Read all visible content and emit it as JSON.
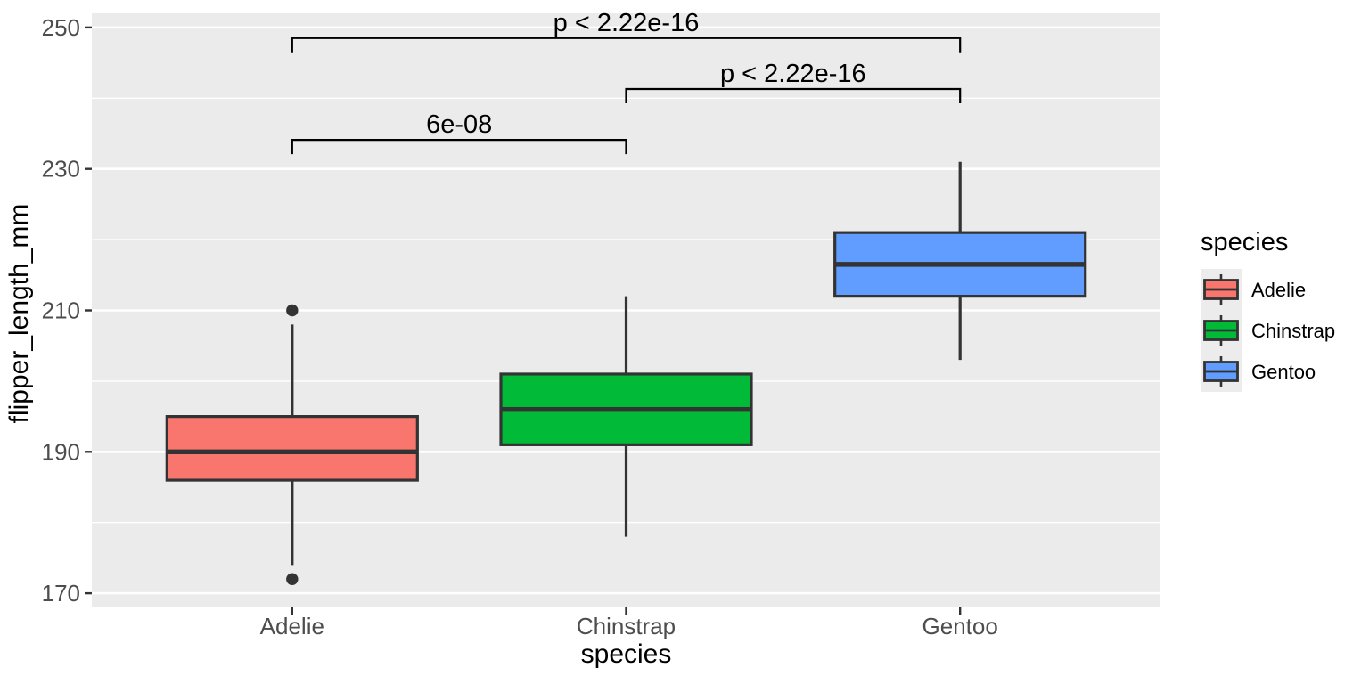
{
  "style": {
    "background": "#FFFFFF",
    "panel_background": "#EBEBEB",
    "grid_color": "#FFFFFF",
    "axis_text_color": "#4D4D4D",
    "title_color": "#000000",
    "box_outline": "#333333",
    "outlier_color": "#333333",
    "legend_key_background": "#ECECEC"
  },
  "chart_data": {
    "type": "boxplot",
    "title": "",
    "xlabel": "species",
    "ylabel": "flipper_length_mm",
    "categories": [
      "Adelie",
      "Chinstrap",
      "Gentoo"
    ],
    "y_ticks": [
      170,
      190,
      210,
      230,
      250
    ],
    "y_minor_ticks": [
      180,
      200,
      220,
      240
    ],
    "ylim": [
      168,
      252
    ],
    "grid": true,
    "legend_position": "right",
    "series": [
      {
        "name": "Adelie",
        "color": "#F8766D",
        "whisker_low": 174,
        "q1": 186,
        "median": 190,
        "q3": 195,
        "whisker_high": 208,
        "outliers": [
          210,
          172
        ]
      },
      {
        "name": "Chinstrap",
        "color": "#00BA38",
        "whisker_low": 178,
        "q1": 191,
        "median": 196,
        "q3": 201,
        "whisker_high": 212,
        "outliers": []
      },
      {
        "name": "Gentoo",
        "color": "#619CFF",
        "whisker_low": 203,
        "q1": 212,
        "median": 216.5,
        "q3": 221,
        "whisker_high": 231,
        "outliers": []
      }
    ],
    "comparisons": [
      {
        "group1": "Adelie",
        "group2": "Gentoo",
        "label": "p < 2.22e-16",
        "y": 248.5
      },
      {
        "group1": "Chinstrap",
        "group2": "Gentoo",
        "label": "p < 2.22e-16",
        "y": 241.3
      },
      {
        "group1": "Adelie",
        "group2": "Chinstrap",
        "label": "6e-08",
        "y": 234.1
      }
    ],
    "legend": {
      "title": "species",
      "entries": [
        {
          "label": "Adelie",
          "color": "#F8766D"
        },
        {
          "label": "Chinstrap",
          "color": "#00BA38"
        },
        {
          "label": "Gentoo",
          "color": "#619CFF"
        }
      ]
    }
  }
}
